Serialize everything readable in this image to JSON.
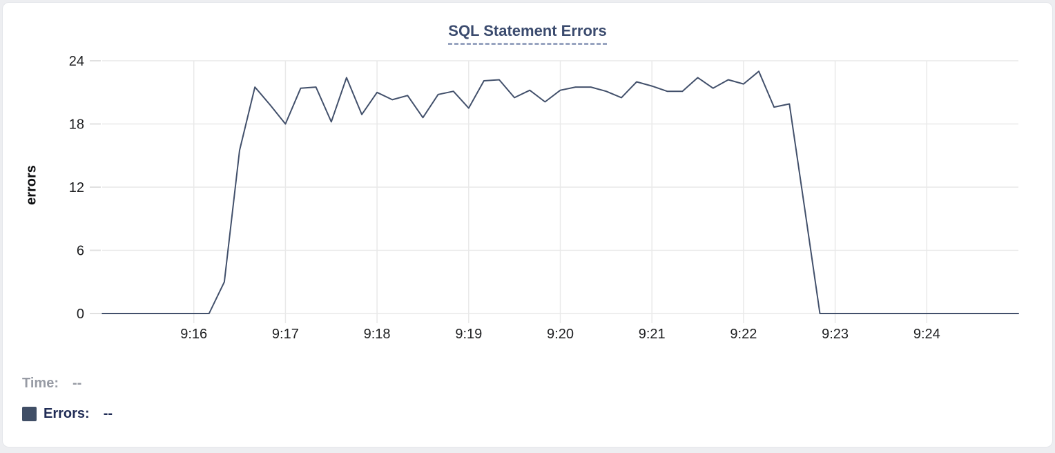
{
  "chart": {
    "title": "SQL Statement Errors",
    "ylabel": "errors"
  },
  "legend": {
    "time_label": "Time:",
    "time_value": "--",
    "errors_label": "Errors:",
    "errors_value": "--",
    "swatch_color": "#404e66"
  },
  "colors": {
    "line": "#42506b",
    "title": "#3b4b6e",
    "title_underline": "#98a4c0",
    "grid": "#e9e9e9",
    "tick": "#e0e0e0",
    "tick_text": "#1d1e20",
    "time_label_gray": "#979ba4",
    "errors_label_navy": "#202c55",
    "card_border": "#e4e6ea"
  },
  "chart_data": {
    "type": "line",
    "title": "SQL Statement Errors",
    "xlabel": "",
    "ylabel": "errors",
    "ylim": [
      0,
      24
    ],
    "y_ticks": [
      0,
      6,
      12,
      18,
      24
    ],
    "x_ticks": [
      "9:16",
      "9:17",
      "9:18",
      "9:19",
      "9:20",
      "9:21",
      "9:22",
      "9:23",
      "9:24"
    ],
    "x_range": [
      "9:15:00",
      "9:25:00"
    ],
    "grid": true,
    "legend_position": "bottom-left",
    "series": [
      {
        "name": "Errors",
        "color": "#42506b",
        "x": [
          "9:15:00",
          "9:15:10",
          "9:15:20",
          "9:15:30",
          "9:15:40",
          "9:15:50",
          "9:16:00",
          "9:16:10",
          "9:16:20",
          "9:16:30",
          "9:16:40",
          "9:16:50",
          "9:17:00",
          "9:17:10",
          "9:17:20",
          "9:17:30",
          "9:17:40",
          "9:17:50",
          "9:18:00",
          "9:18:10",
          "9:18:20",
          "9:18:30",
          "9:18:40",
          "9:18:50",
          "9:19:00",
          "9:19:10",
          "9:19:20",
          "9:19:30",
          "9:19:40",
          "9:19:50",
          "9:20:00",
          "9:20:10",
          "9:20:20",
          "9:20:30",
          "9:20:40",
          "9:20:50",
          "9:21:00",
          "9:21:10",
          "9:21:20",
          "9:21:30",
          "9:21:40",
          "9:21:50",
          "9:22:00",
          "9:22:10",
          "9:22:20",
          "9:22:30",
          "9:22:40",
          "9:22:50",
          "9:23:00",
          "9:23:10",
          "9:23:20",
          "9:23:30",
          "9:23:40",
          "9:23:50",
          "9:24:00",
          "9:24:10",
          "9:24:20",
          "9:24:30",
          "9:24:40",
          "9:24:50",
          "9:25:00"
        ],
        "values": [
          0,
          0,
          0,
          0,
          0,
          0,
          0,
          0,
          3,
          15.5,
          21.5,
          19.8,
          18,
          21.4,
          21.5,
          18.2,
          22.4,
          18.9,
          21,
          20.3,
          20.7,
          18.6,
          20.8,
          21.1,
          19.5,
          22.1,
          22.2,
          20.5,
          21.2,
          20.1,
          21.2,
          21.5,
          21.5,
          21.1,
          20.5,
          22,
          21.6,
          21.1,
          21.1,
          22.4,
          21.4,
          22.2,
          21.8,
          23,
          19.6,
          19.9,
          10,
          0,
          0,
          0,
          0,
          0,
          0,
          0,
          0,
          0,
          0,
          0,
          0,
          0,
          0
        ]
      }
    ]
  }
}
